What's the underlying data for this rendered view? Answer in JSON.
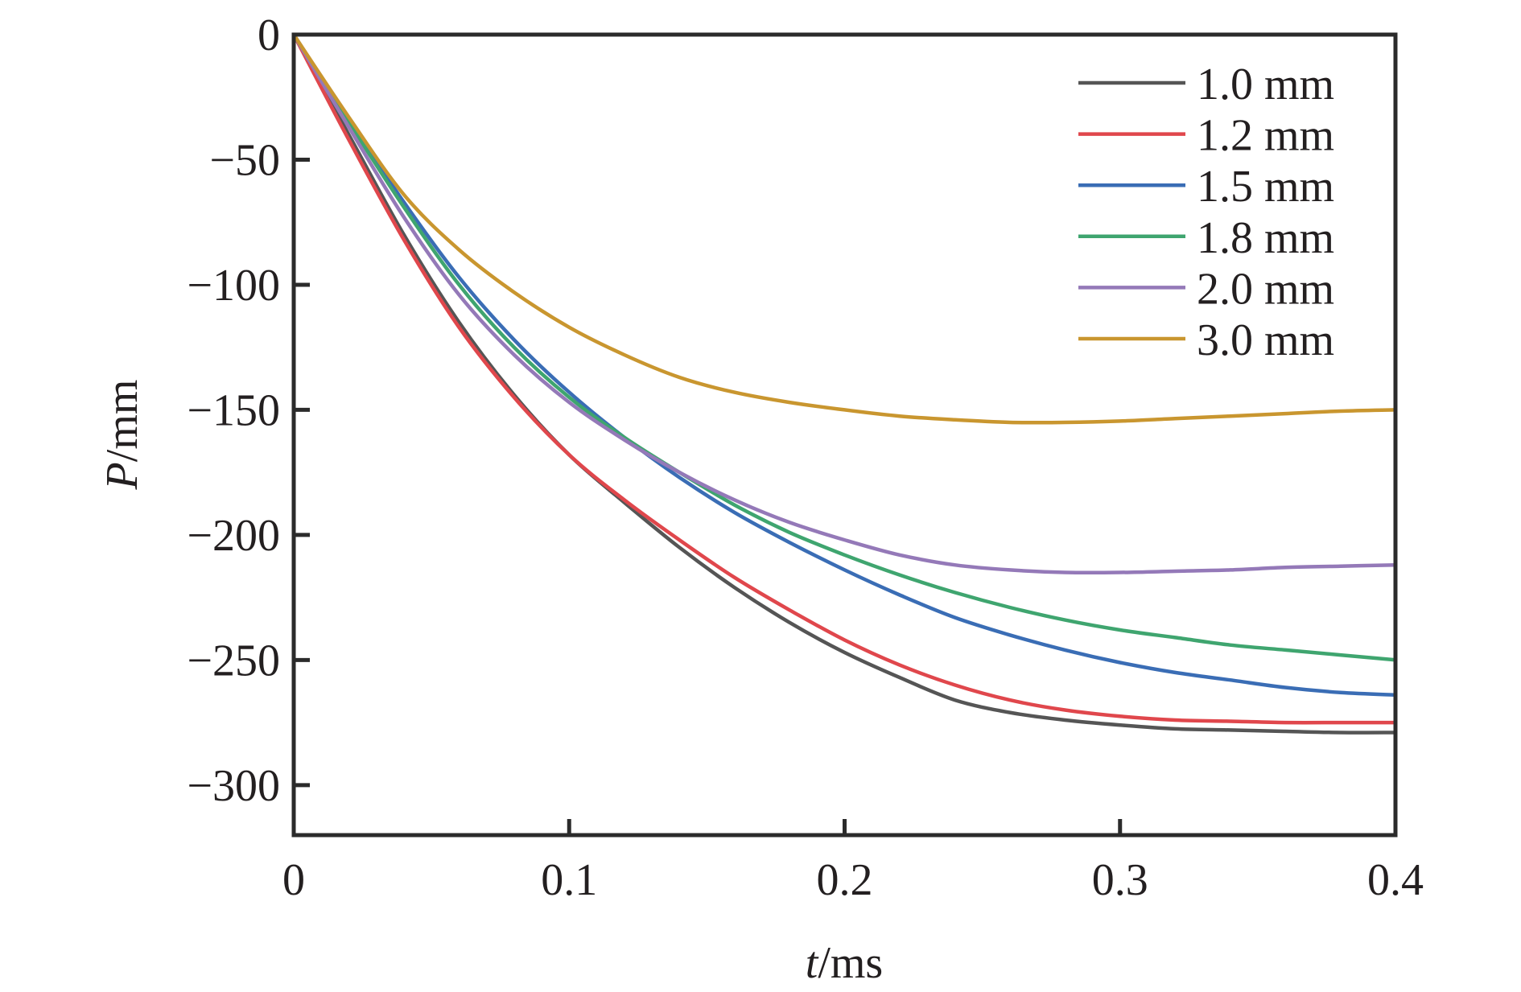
{
  "chart_data": {
    "type": "line",
    "title": "",
    "xlabel": "t/ms",
    "xlabel_var": "t",
    "xlabel_unit": "/ms",
    "ylabel": "P/mm",
    "ylabel_var": "P",
    "ylabel_unit": "/mm",
    "xlim": [
      0,
      0.4
    ],
    "ylim": [
      -320,
      0
    ],
    "grid": false,
    "legend_position": "top-right",
    "x_ticks": [
      0,
      0.1,
      0.2,
      0.3,
      0.4
    ],
    "x_tick_labels": [
      "0",
      "0.1",
      "0.2",
      "0.3",
      "0.4"
    ],
    "y_ticks": [
      0,
      -50,
      -100,
      -150,
      -200,
      -250,
      -300
    ],
    "y_tick_labels": [
      "0",
      "−50",
      "−100",
      "−150",
      "−200",
      "−250",
      "−300"
    ],
    "x": [
      0,
      0.02,
      0.04,
      0.06,
      0.08,
      0.1,
      0.12,
      0.14,
      0.16,
      0.18,
      0.2,
      0.22,
      0.24,
      0.26,
      0.28,
      0.3,
      0.32,
      0.34,
      0.36,
      0.38,
      0.4
    ],
    "series": [
      {
        "name": "1.0 mm",
        "color": "#555555",
        "values": [
          0,
          -40,
          -80,
          -115,
          -144,
          -168,
          -187,
          -205,
          -221,
          -235,
          -247,
          -257,
          -266,
          -271,
          -274,
          -276,
          -277.5,
          -278,
          -278.5,
          -279,
          -279
        ]
      },
      {
        "name": "1.2 mm",
        "color": "#e0474c",
        "values": [
          0,
          -42,
          -82,
          -117,
          -145,
          -168,
          -186,
          -202,
          -217,
          -230,
          -242,
          -252,
          -260,
          -266,
          -270,
          -272.5,
          -274,
          -274.5,
          -275,
          -275,
          -275
        ]
      },
      {
        "name": "1.5 mm",
        "color": "#3a6db5",
        "values": [
          0,
          -34,
          -67,
          -97,
          -122,
          -143,
          -161,
          -177,
          -191,
          -203,
          -214,
          -224,
          -233,
          -240,
          -246,
          -251,
          -255,
          -258,
          -261,
          -263,
          -264
        ]
      },
      {
        "name": "1.8 mm",
        "color": "#3fa56f",
        "values": [
          0,
          -35,
          -69,
          -100,
          -125,
          -145,
          -161,
          -175,
          -188,
          -199,
          -208,
          -216,
          -223,
          -229,
          -234,
          -238,
          -241,
          -244,
          -246,
          -248,
          -250
        ]
      },
      {
        "name": "2.0 mm",
        "color": "#9479b8",
        "values": [
          0,
          -37,
          -73,
          -104,
          -128,
          -147,
          -162,
          -175,
          -186,
          -195,
          -202,
          -208,
          -212,
          -214,
          -215,
          -215,
          -214.5,
          -214,
          -213,
          -212.5,
          -212
        ]
      },
      {
        "name": "3.0 mm",
        "color": "#c9962f",
        "values": [
          0,
          -33,
          -64,
          -86,
          -103,
          -117,
          -128,
          -137,
          -143,
          -147,
          -150,
          -152.5,
          -154,
          -155,
          -155,
          -154.5,
          -153.5,
          -152.5,
          -151.5,
          -150.5,
          -150
        ]
      }
    ]
  }
}
